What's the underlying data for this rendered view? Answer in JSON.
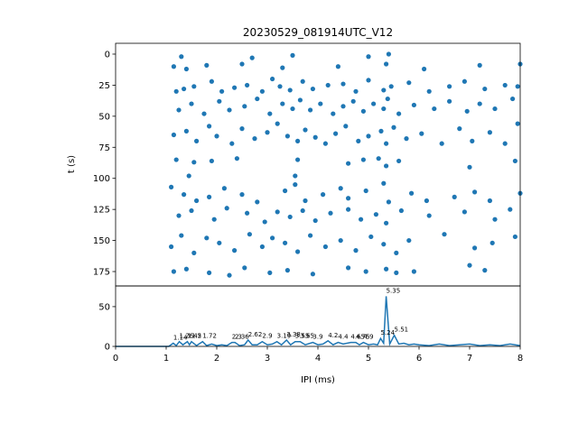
{
  "chart_data": [
    {
      "type": "scatter",
      "title": "20230529_081914UTC_V12",
      "y_label": "t (s)",
      "color": "#1f77b4",
      "xlim": [
        0,
        8
      ],
      "ylim": [
        -8.7,
        186.6
      ],
      "y_inverted": true,
      "yticks": [
        0,
        25,
        50,
        75,
        100,
        125,
        150,
        175
      ],
      "x": [
        1.15,
        1.4,
        1.8,
        2.5,
        3.3,
        4.4,
        5.35,
        6.1,
        7.2,
        8.0,
        1.3,
        2.7,
        3.5,
        5.0,
        5.4,
        1.2,
        1.35,
        1.55,
        1.9,
        2.1,
        2.35,
        2.6,
        2.9,
        3.1,
        3.25,
        3.45,
        3.7,
        3.9,
        4.2,
        4.5,
        4.75,
        5.0,
        5.3,
        5.45,
        5.8,
        6.2,
        6.6,
        6.9,
        7.3,
        7.7,
        7.95,
        1.25,
        1.5,
        1.75,
        2.05,
        2.25,
        2.55,
        2.8,
        3.05,
        3.3,
        3.5,
        3.65,
        3.85,
        4.05,
        4.3,
        4.5,
        4.7,
        4.9,
        5.1,
        5.3,
        5.38,
        5.6,
        5.9,
        6.3,
        6.6,
        6.95,
        7.2,
        7.5,
        7.85,
        1.15,
        1.4,
        1.6,
        1.85,
        2.0,
        2.3,
        2.5,
        2.75,
        3.0,
        3.2,
        3.4,
        3.6,
        3.75,
        3.95,
        4.15,
        4.35,
        4.55,
        4.8,
        5.0,
        5.25,
        5.35,
        5.5,
        5.75,
        6.05,
        6.45,
        6.8,
        7.05,
        7.4,
        7.7,
        7.95,
        1.2,
        1.55,
        1.9,
        2.4,
        3.6,
        4.6,
        4.9,
        5.2,
        5.35,
        5.6,
        7.0,
        7.9,
        1.1,
        1.35,
        1.6,
        1.85,
        2.15,
        2.5,
        2.8,
        3.35,
        3.55,
        3.75,
        4.1,
        4.45,
        4.6,
        4.95,
        5.3,
        5.4,
        5.85,
        6.15,
        6.7,
        7.1,
        7.4,
        8.0,
        1.45,
        3.55,
        1.25,
        1.5,
        1.95,
        2.2,
        2.6,
        2.95,
        3.2,
        3.45,
        3.7,
        3.95,
        4.25,
        4.6,
        4.85,
        5.15,
        5.35,
        5.65,
        6.2,
        6.9,
        7.5,
        7.8,
        1.1,
        1.3,
        1.55,
        1.8,
        2.05,
        2.35,
        2.65,
        2.9,
        3.1,
        3.35,
        3.6,
        3.85,
        4.15,
        4.45,
        4.75,
        5.05,
        5.3,
        5.55,
        5.8,
        6.5,
        7.1,
        7.45,
        7.9,
        1.15,
        1.4,
        1.85,
        2.25,
        2.55,
        3.05,
        3.4,
        3.9,
        4.6,
        4.95,
        5.35,
        5.55,
        5.9,
        7.0,
        7.3
      ],
      "y": [
        10,
        12,
        9,
        8,
        11,
        10,
        8,
        12,
        9,
        8,
        2,
        3,
        1,
        2,
        0,
        30,
        28,
        26,
        22,
        30,
        27,
        25,
        30,
        20,
        26,
        29,
        22,
        28,
        25,
        24,
        30,
        21,
        29,
        26,
        23,
        30,
        26,
        22,
        28,
        25,
        26,
        45,
        40,
        48,
        38,
        45,
        42,
        36,
        48,
        40,
        44,
        37,
        45,
        40,
        48,
        42,
        38,
        46,
        40,
        44,
        36,
        48,
        41,
        44,
        38,
        46,
        40,
        44,
        36,
        65,
        62,
        70,
        58,
        66,
        72,
        60,
        68,
        63,
        56,
        66,
        70,
        61,
        67,
        72,
        64,
        58,
        70,
        66,
        62,
        72,
        59,
        68,
        64,
        72,
        60,
        70,
        63,
        72,
        56,
        85,
        87,
        86,
        84,
        85,
        88,
        85,
        84,
        90,
        86,
        91,
        86,
        107,
        113,
        118,
        115,
        108,
        113,
        119,
        110,
        105,
        118,
        113,
        108,
        116,
        110,
        104,
        119,
        112,
        118,
        115,
        111,
        118,
        112,
        98,
        98,
        130,
        126,
        133,
        124,
        128,
        135,
        127,
        131,
        126,
        134,
        128,
        125,
        133,
        129,
        136,
        126,
        130,
        127,
        133,
        125,
        155,
        146,
        160,
        148,
        152,
        158,
        145,
        155,
        148,
        152,
        159,
        146,
        155,
        150,
        158,
        147,
        153,
        160,
        150,
        145,
        156,
        152,
        147,
        175,
        173,
        176,
        178,
        172,
        176,
        174,
        177,
        172,
        175,
        173,
        176,
        175,
        170,
        174
      ]
    },
    {
      "type": "line",
      "x_label": "IPI (ms)",
      "color": "#1f77b4",
      "xlim": [
        0,
        8
      ],
      "ylim": [
        0,
        76
      ],
      "xticks": [
        0,
        1,
        2,
        3,
        4,
        5,
        6,
        7,
        8
      ],
      "yticks": [
        0,
        50
      ],
      "x": [
        0,
        1.05,
        1.14,
        1.2,
        1.26,
        1.33,
        1.42,
        1.46,
        1.5,
        1.6,
        1.72,
        1.8,
        1.9,
        2.0,
        2.1,
        2.2,
        2.3,
        2.36,
        2.45,
        2.55,
        2.62,
        2.7,
        2.8,
        2.9,
        3.0,
        3.1,
        3.19,
        3.28,
        3.38,
        3.46,
        3.55,
        3.65,
        3.75,
        3.9,
        4.0,
        4.1,
        4.2,
        4.3,
        4.4,
        4.5,
        4.65,
        4.75,
        4.82,
        4.9,
        5.0,
        5.1,
        5.18,
        5.24,
        5.3,
        5.35,
        5.42,
        5.51,
        5.6,
        5.7,
        5.8,
        5.9,
        6.0,
        6.2,
        6.4,
        6.6,
        6.8,
        7.0,
        7.2,
        7.4,
        7.6,
        7.8,
        8.0
      ],
      "values": [
        0,
        0,
        4,
        1,
        6,
        2,
        6,
        2,
        6,
        1,
        6,
        1,
        3,
        1,
        2,
        1,
        5,
        5,
        1,
        2,
        8,
        2,
        2,
        6,
        2,
        3,
        6,
        2,
        8,
        2,
        6,
        6,
        2,
        5,
        2,
        3,
        7,
        2,
        5,
        3,
        5,
        5,
        2,
        5,
        2,
        3,
        2,
        10,
        4,
        63,
        3,
        14,
        3,
        4,
        2,
        3,
        2,
        1,
        3,
        1,
        2,
        3,
        1,
        2,
        1,
        3,
        1
      ],
      "annotations": [
        {
          "x": 1.14,
          "y": 4
        },
        {
          "x": 1.26,
          "y": 6
        },
        {
          "x": 1.42,
          "y": 6
        },
        {
          "x": 1.5,
          "y": 6
        },
        {
          "x": 1.72,
          "y": 6
        },
        {
          "x": 2.3,
          "y": 5
        },
        {
          "x": 2.36,
          "y": 5
        },
        {
          "x": 2.62,
          "y": 8
        },
        {
          "x": 2.9,
          "y": 6
        },
        {
          "x": 3.19,
          "y": 6
        },
        {
          "x": 3.38,
          "y": 8
        },
        {
          "x": 3.55,
          "y": 6
        },
        {
          "x": 3.65,
          "y": 6
        },
        {
          "x": 3.9,
          "y": 5
        },
        {
          "x": 4.2,
          "y": 7
        },
        {
          "x": 4.4,
          "y": 5
        },
        {
          "x": 4.65,
          "y": 5
        },
        {
          "x": 4.75,
          "y": 5
        },
        {
          "x": 4.9,
          "y": 5
        },
        {
          "x": 5.24,
          "y": 10
        },
        {
          "x": 5.35,
          "y": 63
        },
        {
          "x": 5.51,
          "y": 14
        }
      ]
    }
  ]
}
